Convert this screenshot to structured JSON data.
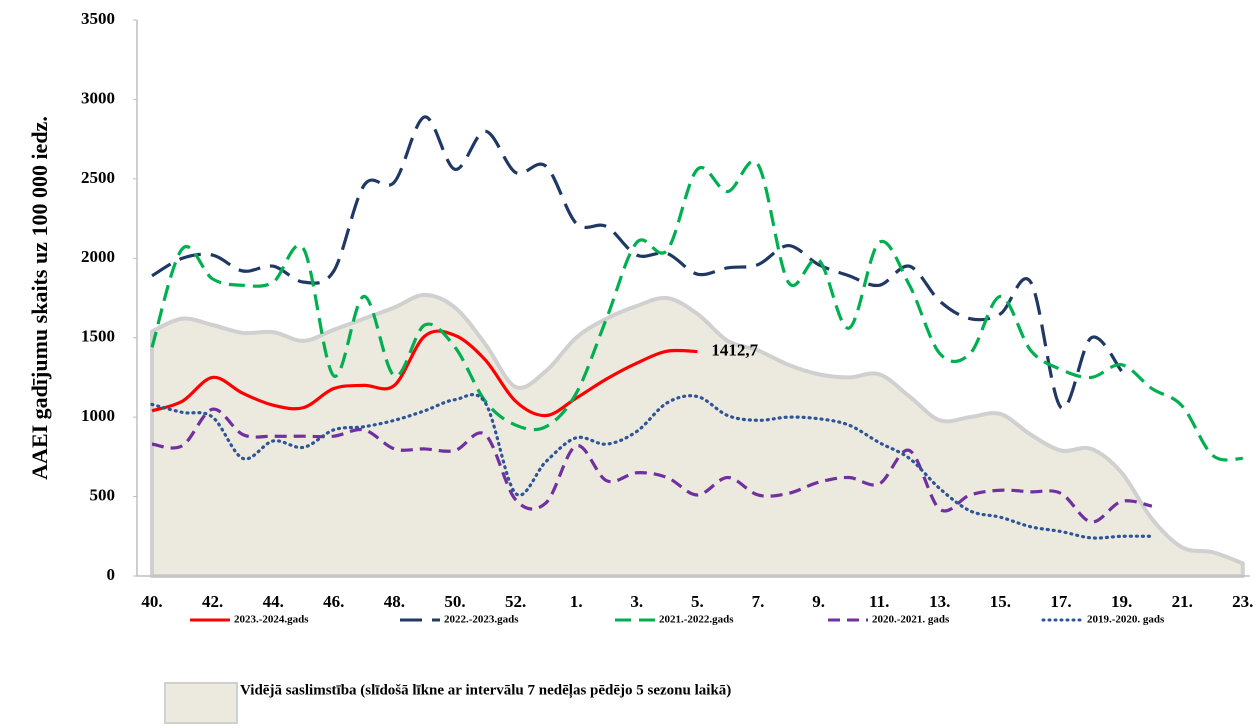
{
  "chart_data": {
    "type": "line",
    "y_label": "AAEI gadījumu skaits uz 100 000 iedz.",
    "categories": [
      "40.",
      null,
      "42.",
      null,
      "44.",
      null,
      "46.",
      null,
      "48.",
      null,
      "50.",
      null,
      "52.",
      null,
      "1.",
      null,
      "3.",
      null,
      "5.",
      null,
      "7.",
      null,
      "9.",
      null,
      "11.",
      null,
      "13.",
      null,
      "15.",
      null,
      "17.",
      null,
      "19.",
      null,
      "21.",
      null,
      "23."
    ],
    "ylim": [
      0,
      3500
    ],
    "yticks": [
      0,
      500,
      1000,
      1500,
      2000,
      2500,
      3000,
      3500
    ],
    "series": [
      {
        "name": "Vidējā saslimstība (slīdošā līkne ar intervālu 7 nedēļas pēdējo 5 sezonu laikā)",
        "type": "area",
        "color": "#ece9df",
        "values": [
          1540,
          1620,
          1580,
          1530,
          1535,
          1480,
          1550,
          1620,
          1690,
          1770,
          1690,
          1460,
          1190,
          1290,
          1500,
          1620,
          1700,
          1750,
          1650,
          1480,
          1420,
          1330,
          1270,
          1250,
          1270,
          1130,
          980,
          1000,
          1020,
          890,
          790,
          800,
          650,
          360,
          180,
          150,
          80
        ]
      },
      {
        "name": "2023.-2024.gads",
        "color": "#ff0000",
        "dash": "solid",
        "values": [
          1040,
          1100,
          1250,
          1150,
          1075,
          1060,
          1180,
          1200,
          1200,
          1510,
          1515,
          1360,
          1100,
          1010,
          1120,
          1240,
          1340,
          1415,
          1412.7,
          null,
          null,
          null,
          null,
          null,
          null,
          null,
          null,
          null,
          null,
          null,
          null,
          null,
          null,
          null,
          null,
          null,
          null
        ],
        "value_labels": [
          null,
          null,
          null,
          null,
          null,
          null,
          null,
          null,
          null,
          null,
          null,
          null,
          null,
          null,
          null,
          null,
          null,
          null,
          "1412,7",
          null,
          null,
          null,
          null,
          null,
          null,
          null,
          null,
          null,
          null,
          null,
          null,
          null,
          null,
          null,
          null,
          null,
          null
        ]
      },
      {
        "name": "2022.-2023.gads",
        "color": "#1f3864",
        "dash": "long",
        "values": [
          1890,
          2000,
          2020,
          1920,
          1950,
          1850,
          1920,
          2460,
          2480,
          2890,
          2560,
          2800,
          2540,
          2580,
          2220,
          2200,
          2020,
          2030,
          1900,
          1940,
          1960,
          2080,
          1960,
          1890,
          1830,
          1950,
          1730,
          1620,
          1650,
          1850,
          1060,
          1500,
          1290,
          null,
          null,
          null,
          null
        ]
      },
      {
        "name": "2021.-2022.gads",
        "color": "#00b050",
        "dash": "medium",
        "values": [
          1440,
          2060,
          1870,
          1830,
          1850,
          2060,
          1260,
          1760,
          1260,
          1580,
          1440,
          1100,
          950,
          940,
          1150,
          1620,
          2100,
          2050,
          2560,
          2420,
          2590,
          1850,
          1990,
          1560,
          2100,
          1830,
          1400,
          1400,
          1760,
          1420,
          1300,
          1250,
          1330,
          1180,
          1070,
          760,
          740
        ]
      },
      {
        "name": "2020.-2021. gads",
        "color": "#7030a0",
        "dash": "short",
        "values": [
          830,
          820,
          1050,
          890,
          880,
          880,
          880,
          920,
          800,
          800,
          790,
          890,
          480,
          460,
          820,
          600,
          650,
          620,
          510,
          620,
          510,
          520,
          590,
          620,
          580,
          790,
          420,
          510,
          540,
          530,
          520,
          340,
          470,
          440,
          null,
          null,
          null
        ]
      },
      {
        "name": "2019.-2020. gads",
        "color": "#2e5597",
        "dash": "dot",
        "values": [
          1080,
          1030,
          1000,
          740,
          850,
          810,
          920,
          940,
          980,
          1040,
          1110,
          1090,
          520,
          720,
          870,
          830,
          910,
          1090,
          1130,
          1010,
          980,
          1000,
          990,
          950,
          840,
          740,
          550,
          410,
          370,
          310,
          280,
          240,
          250,
          250,
          null,
          null,
          null
        ]
      }
    ]
  }
}
